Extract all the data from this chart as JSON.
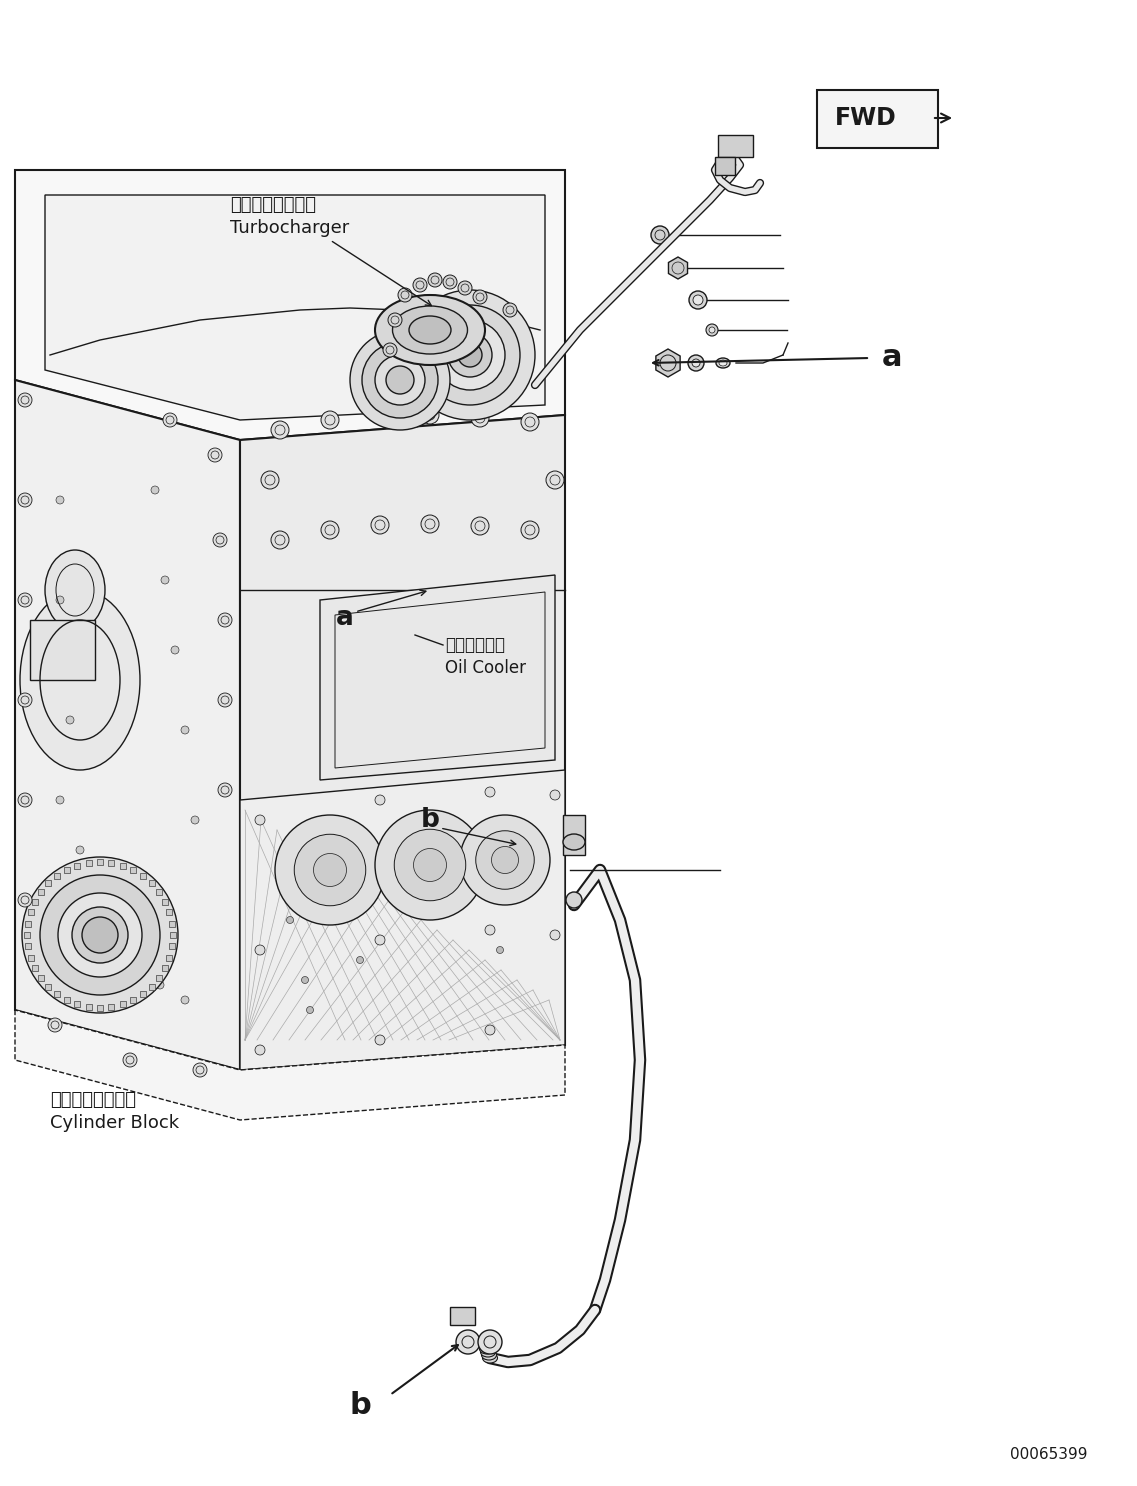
{
  "background_color": "#ffffff",
  "fig_width": 11.37,
  "fig_height": 14.86,
  "dpi": 100,
  "part_number": "00065399",
  "labels": {
    "turbocharger_jp": "ターボチャージャ",
    "turbocharger_en": "Turbocharger",
    "oil_cooler_jp": "オイルクーラ",
    "oil_cooler_en": "Oil Cooler",
    "cylinder_block_jp": "シリンダブロック",
    "cylinder_block_en": "Cylinder Block"
  }
}
